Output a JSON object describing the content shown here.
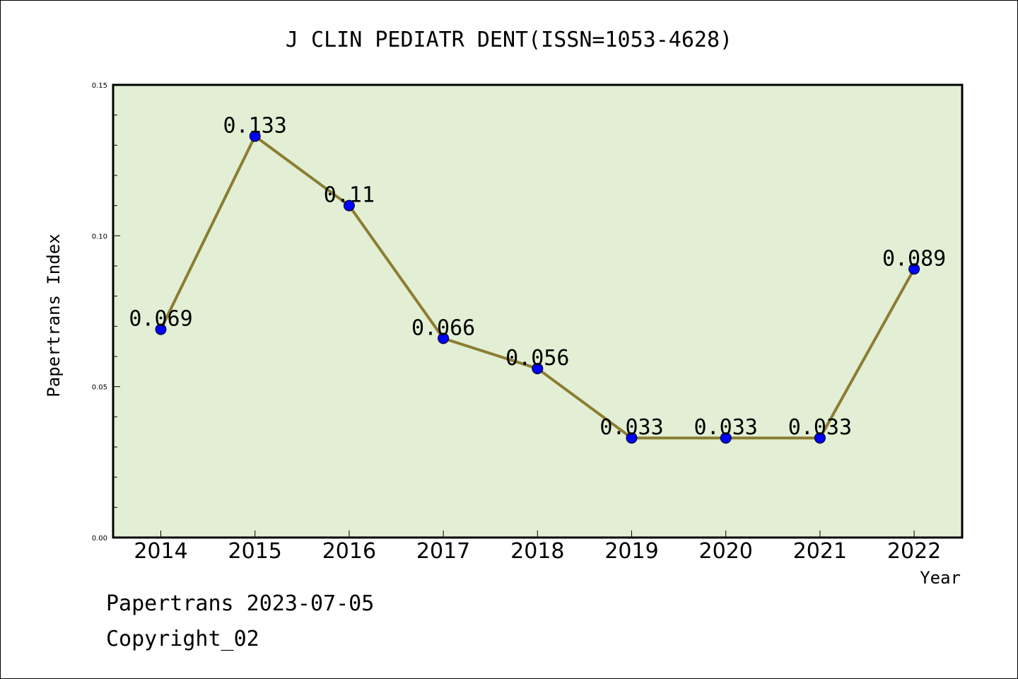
{
  "chart_data": {
    "type": "line",
    "title": "J CLIN PEDIATR DENT(ISSN=1053-4628)",
    "xlabel": "Year",
    "ylabel": "Papertrans Index",
    "categories": [
      "2014",
      "2015",
      "2016",
      "2017",
      "2018",
      "2019",
      "2020",
      "2021",
      "2022"
    ],
    "series": [
      {
        "values": [
          0.069,
          0.133,
          0.11,
          0.066,
          0.056,
          0.033,
          0.033,
          0.033,
          0.089
        ]
      }
    ],
    "data_labels": [
      "0.069",
      "0.133",
      "0.11",
      "0.066",
      "0.056",
      "0.033",
      "0.033",
      "0.033",
      "0.089"
    ],
    "ylim": [
      0,
      0.15
    ],
    "yticks": [
      "0.00",
      "0.05",
      "0.10",
      "0.15"
    ],
    "grid": false,
    "colors": {
      "line": "#8b7d32",
      "marker": "#0000ff",
      "plot_bg": "#e2efd4"
    }
  },
  "footer": {
    "line1": "Papertrans 2023-07-05",
    "line2": "Copyright_02"
  }
}
